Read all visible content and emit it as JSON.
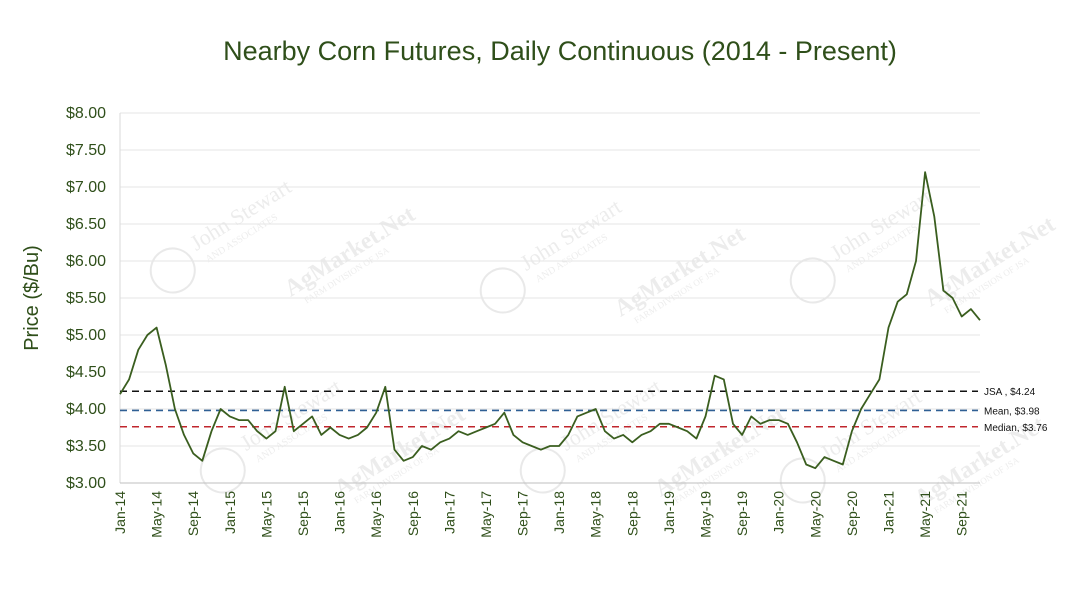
{
  "chart_data": {
    "type": "line",
    "title": "Nearby Corn Futures, Daily Continuous (2014 - Present)",
    "xlabel": "",
    "ylabel": "Price ($/Bu)",
    "ylim": [
      3.0,
      8.0
    ],
    "y_ticks": [
      "$3.00",
      "$3.50",
      "$4.00",
      "$4.50",
      "$5.00",
      "$5.50",
      "$6.00",
      "$6.50",
      "$7.00",
      "$7.50",
      "$8.00"
    ],
    "x_ticks": [
      "Jan-14",
      "May-14",
      "Sep-14",
      "Jan-15",
      "May-15",
      "Sep-15",
      "Jan-16",
      "May-16",
      "Sep-16",
      "Jan-17",
      "May-17",
      "Sep-17",
      "Jan-18",
      "May-18",
      "Sep-18",
      "Jan-19",
      "May-19",
      "Sep-19",
      "Jan-20",
      "May-20",
      "Sep-20",
      "Jan-21",
      "May-21",
      "Sep-21"
    ],
    "x_range": [
      "Jan-14",
      "Nov-21"
    ],
    "grid": true,
    "series": [
      {
        "color": "#3a5e1f",
        "points": [
          [
            "Jan-14",
            4.2
          ],
          [
            "Feb-14",
            4.4
          ],
          [
            "Mar-14",
            4.8
          ],
          [
            "Apr-14",
            5.0
          ],
          [
            "May-14",
            5.1
          ],
          [
            "Jun-14",
            4.6
          ],
          [
            "Jul-14",
            4.0
          ],
          [
            "Aug-14",
            3.65
          ],
          [
            "Sep-14",
            3.4
          ],
          [
            "Oct-14",
            3.3
          ],
          [
            "Nov-14",
            3.7
          ],
          [
            "Dec-14",
            4.0
          ],
          [
            "Jan-15",
            3.9
          ],
          [
            "Feb-15",
            3.85
          ],
          [
            "Mar-15",
            3.85
          ],
          [
            "Apr-15",
            3.7
          ],
          [
            "May-15",
            3.6
          ],
          [
            "Jun-15",
            3.7
          ],
          [
            "Jul-15",
            4.3
          ],
          [
            "Aug-15",
            3.7
          ],
          [
            "Sep-15",
            3.8
          ],
          [
            "Oct-15",
            3.9
          ],
          [
            "Nov-15",
            3.65
          ],
          [
            "Dec-15",
            3.75
          ],
          [
            "Jan-16",
            3.65
          ],
          [
            "Feb-16",
            3.6
          ],
          [
            "Mar-16",
            3.65
          ],
          [
            "Apr-16",
            3.75
          ],
          [
            "May-16",
            3.95
          ],
          [
            "Jun-16",
            4.3
          ],
          [
            "Jul-16",
            3.45
          ],
          [
            "Aug-16",
            3.3
          ],
          [
            "Sep-16",
            3.35
          ],
          [
            "Oct-16",
            3.5
          ],
          [
            "Nov-16",
            3.45
          ],
          [
            "Dec-16",
            3.55
          ],
          [
            "Jan-17",
            3.6
          ],
          [
            "Feb-17",
            3.7
          ],
          [
            "Mar-17",
            3.65
          ],
          [
            "Apr-17",
            3.7
          ],
          [
            "May-17",
            3.75
          ],
          [
            "Jun-17",
            3.8
          ],
          [
            "Jul-17",
            3.95
          ],
          [
            "Aug-17",
            3.65
          ],
          [
            "Sep-17",
            3.55
          ],
          [
            "Oct-17",
            3.5
          ],
          [
            "Nov-17",
            3.45
          ],
          [
            "Dec-17",
            3.5
          ],
          [
            "Jan-18",
            3.5
          ],
          [
            "Feb-18",
            3.65
          ],
          [
            "Mar-18",
            3.9
          ],
          [
            "Apr-18",
            3.95
          ],
          [
            "May-18",
            4.0
          ],
          [
            "Jun-18",
            3.7
          ],
          [
            "Jul-18",
            3.6
          ],
          [
            "Aug-18",
            3.65
          ],
          [
            "Sep-18",
            3.55
          ],
          [
            "Oct-18",
            3.65
          ],
          [
            "Nov-18",
            3.7
          ],
          [
            "Dec-18",
            3.8
          ],
          [
            "Jan-19",
            3.8
          ],
          [
            "Feb-19",
            3.75
          ],
          [
            "Mar-19",
            3.7
          ],
          [
            "Apr-19",
            3.6
          ],
          [
            "May-19",
            3.9
          ],
          [
            "Jun-19",
            4.45
          ],
          [
            "Jul-19",
            4.4
          ],
          [
            "Aug-19",
            3.8
          ],
          [
            "Sep-19",
            3.65
          ],
          [
            "Oct-19",
            3.9
          ],
          [
            "Nov-19",
            3.8
          ],
          [
            "Dec-19",
            3.85
          ],
          [
            "Jan-20",
            3.85
          ],
          [
            "Feb-20",
            3.8
          ],
          [
            "Mar-20",
            3.55
          ],
          [
            "Apr-20",
            3.25
          ],
          [
            "May-20",
            3.2
          ],
          [
            "Jun-20",
            3.35
          ],
          [
            "Jul-20",
            3.3
          ],
          [
            "Aug-20",
            3.25
          ],
          [
            "Sep-20",
            3.7
          ],
          [
            "Oct-20",
            4.0
          ],
          [
            "Nov-20",
            4.2
          ],
          [
            "Dec-20",
            4.4
          ],
          [
            "Jan-21",
            5.1
          ],
          [
            "Feb-21",
            5.45
          ],
          [
            "Mar-21",
            5.55
          ],
          [
            "Apr-21",
            6.0
          ],
          [
            "May-21",
            7.2
          ],
          [
            "Jun-21",
            6.6
          ],
          [
            "Jul-21",
            5.6
          ],
          [
            "Aug-21",
            5.5
          ],
          [
            "Sep-21",
            5.25
          ],
          [
            "Oct-21",
            5.35
          ],
          [
            "Nov-21",
            5.2
          ]
        ]
      }
    ],
    "reference_lines": [
      {
        "label": "JSA , $4.24",
        "value": 4.24,
        "color": "#111111"
      },
      {
        "label": "Mean, $3.98",
        "value": 3.98,
        "color": "#2f5f94"
      },
      {
        "label": "Median, $3.76",
        "value": 3.76,
        "color": "#c0262d"
      }
    ],
    "watermark": [
      "AgMarket.Net",
      "John Stewart",
      "AND ASSOCIATES",
      "FARM DIVISION OF JSA",
      "JSA"
    ]
  }
}
